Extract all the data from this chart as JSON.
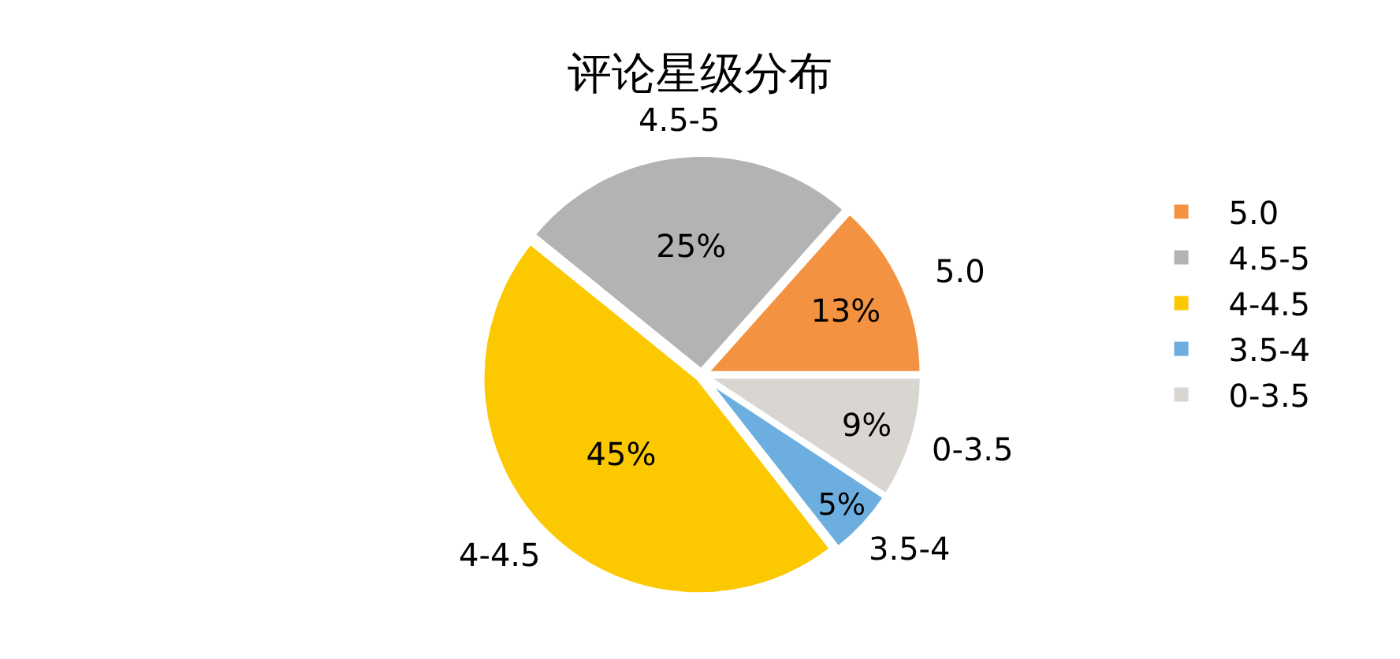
{
  "chart_data": {
    "type": "pie",
    "title": "评论星级分布",
    "categories": [
      "5.0",
      "4.5-5",
      "4-4.5",
      "3.5-4",
      "0-3.5"
    ],
    "values": [
      13,
      25,
      45,
      5,
      9
    ],
    "value_labels": [
      "13%",
      "25%",
      "45%",
      "5%",
      "9%"
    ],
    "colors": [
      "#f39240",
      "#b3b3b3",
      "#fcc800",
      "#6caedf",
      "#d9d5d0"
    ],
    "legend": "right"
  }
}
